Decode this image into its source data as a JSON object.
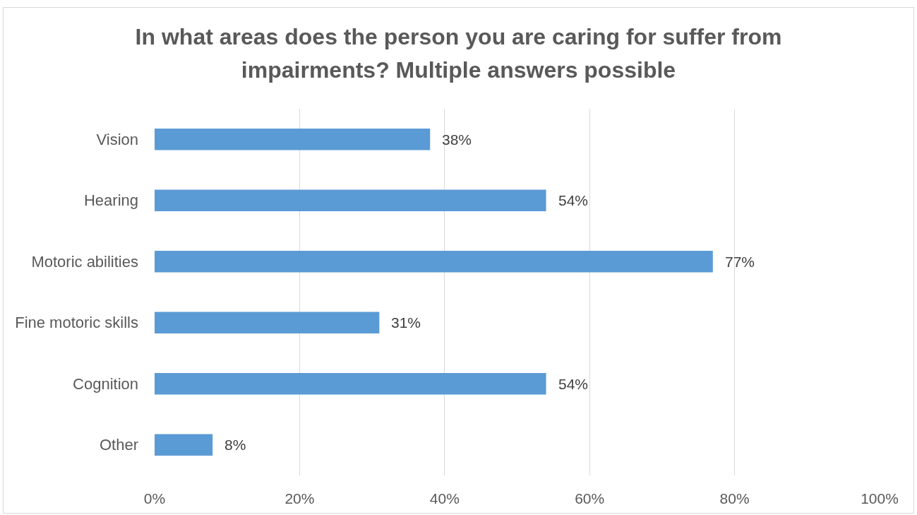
{
  "chart_data": {
    "type": "bar",
    "orientation": "horizontal",
    "title": "In what areas does the person you are caring for suffer from impairments? Multiple answers possible",
    "categories": [
      "Vision",
      "Hearing",
      "Motoric abilities",
      "Fine motoric skills",
      "Cognition",
      "Other"
    ],
    "values": [
      38,
      54,
      77,
      31,
      54,
      8
    ],
    "value_labels": [
      "38%",
      "54%",
      "77%",
      "31%",
      "54%",
      "8%"
    ],
    "color": "#5b9bd5",
    "xlim": [
      0,
      100
    ],
    "xticks": [
      {
        "value": 0,
        "label": "0%"
      },
      {
        "value": 20,
        "label": "20%"
      },
      {
        "value": 40,
        "label": "40%"
      },
      {
        "value": 60,
        "label": "60%"
      },
      {
        "value": 80,
        "label": "80%"
      },
      {
        "value": 100,
        "label": "100%"
      }
    ],
    "grid": "x"
  }
}
